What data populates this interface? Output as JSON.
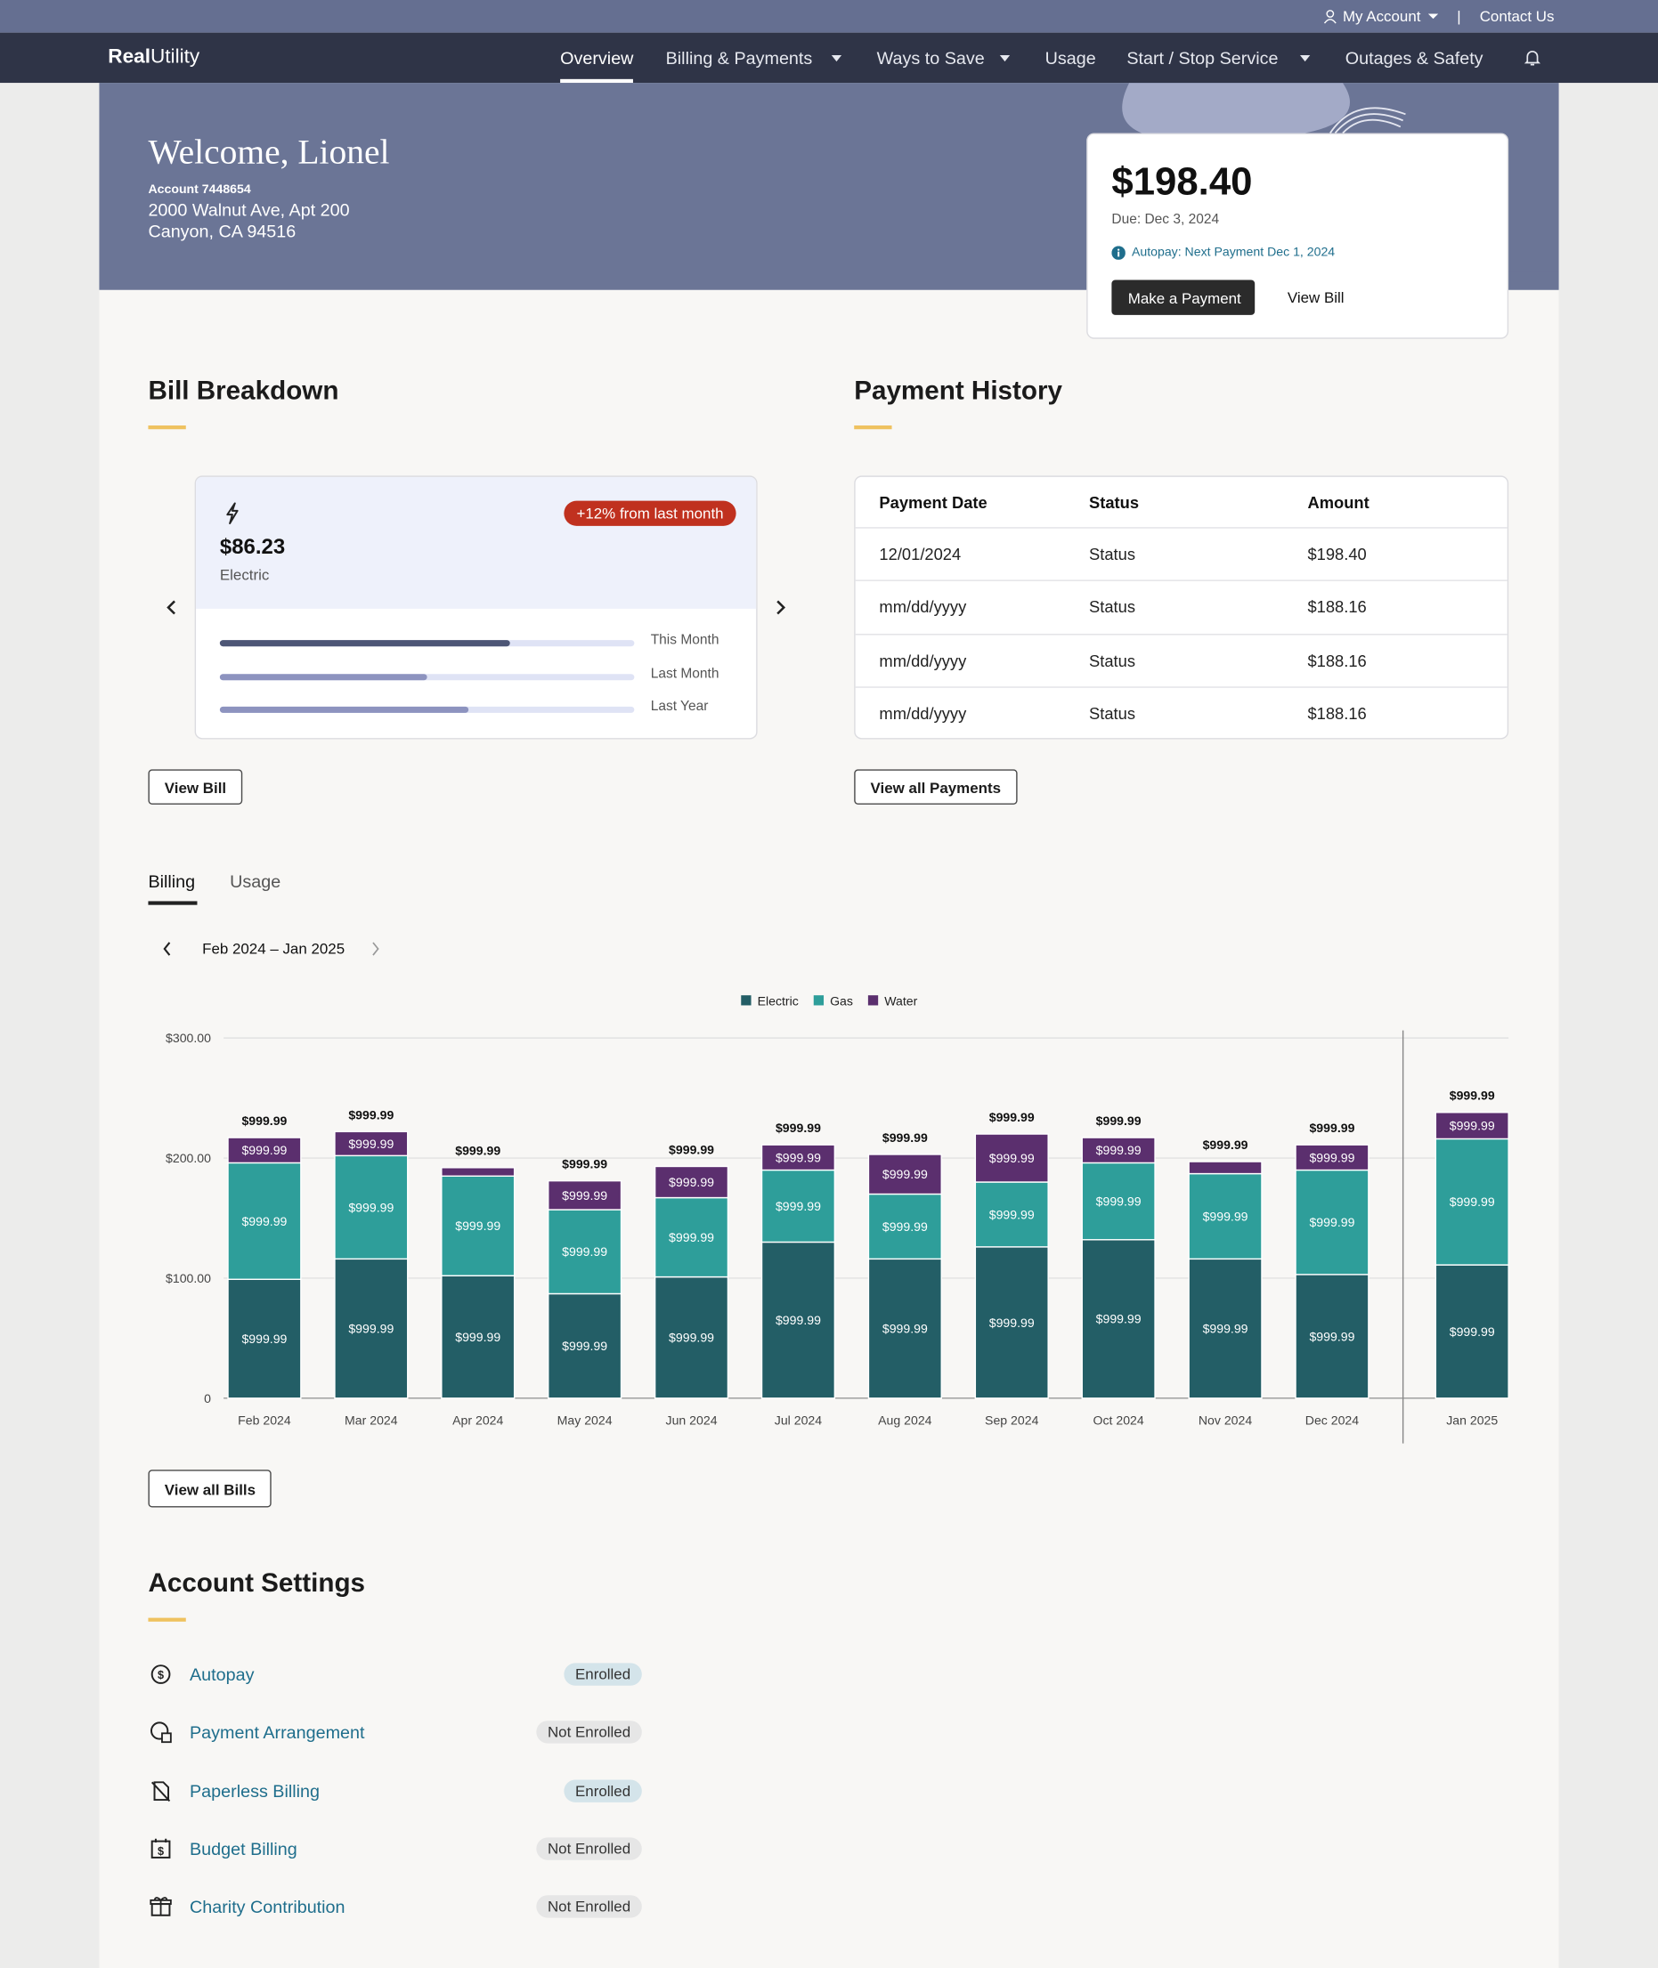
{
  "topbar": {
    "account": "My Account",
    "separator": "|",
    "contact": "Contact Us"
  },
  "nav": {
    "brand_bold": "Real",
    "brand_rest": "Utility",
    "items": [
      "Overview",
      "Billing & Payments",
      "Ways to Save",
      "Usage",
      "Start / Stop Service",
      "Outages & Safety"
    ]
  },
  "hero": {
    "welcome": "Welcome, Lionel",
    "account": "Account 7448654",
    "address1": "2000 Walnut Ave, Apt 200",
    "address2": "Canyon, CA 94516"
  },
  "payment_card": {
    "amount": "$198.40",
    "due": "Due: Dec 3, 2024",
    "autopay": "Autopay: Next Payment Dec 1, 2024",
    "primary_button": "Make a Payment",
    "secondary_button": "View Bill"
  },
  "bill_breakdown": {
    "title": "Bill Breakdown",
    "badge": "+12% from last month",
    "amount": "$86.23",
    "type": "Electric",
    "comparison": [
      {
        "label": "This Month",
        "value": 70
      },
      {
        "label": "Last Month",
        "value": 50
      },
      {
        "label": "Last Year",
        "value": 60
      }
    ],
    "button": "View Bill"
  },
  "payment_history": {
    "title": "Payment History",
    "columns": [
      "Payment Date",
      "Status",
      "Amount"
    ],
    "rows": [
      [
        "12/01/2024",
        "Status",
        "$198.40"
      ],
      [
        "mm/dd/yyyy",
        "Status",
        "$188.16"
      ],
      [
        "mm/dd/yyyy",
        "Status",
        "$188.16"
      ],
      [
        "mm/dd/yyyy",
        "Status",
        "$188.16"
      ]
    ],
    "button": "View all Payments"
  },
  "tabs": [
    "Billing",
    "Usage"
  ],
  "date_range": "Feb 2024 – Jan 2025",
  "chart_data": {
    "type": "bar",
    "stacked": true,
    "grid": true,
    "legend": "top",
    "categories": [
      "Feb 2024",
      "Mar 2024",
      "Apr 2024",
      "May 2024",
      "Jun 2024",
      "Jul 2024",
      "Aug 2024",
      "Sep 2024",
      "Oct 2024",
      "Nov 2024",
      "Dec 2024",
      "Jan 2025"
    ],
    "series": [
      {
        "name": "Electric",
        "color": "#235e66",
        "values": [
          99,
          116,
          102,
          87,
          101,
          130,
          116,
          126,
          132,
          116,
          103,
          111
        ],
        "segment_texts": [
          "$999.99",
          "$999.99",
          "$999.99",
          "$999.99",
          "$999.99",
          "$999.99",
          "$999.99",
          "$999.99",
          "$999.99",
          "$999.99",
          "$999.99",
          "$999.99"
        ]
      },
      {
        "name": "Gas",
        "color": "#2e9e9a",
        "values": [
          97,
          86,
          83,
          70,
          66,
          60,
          54,
          54,
          64,
          71,
          87,
          105
        ],
        "segment_texts": [
          "$999.99",
          "$999.99",
          "$999.99",
          "$999.99",
          "$999.99",
          "$999.99",
          "$999.99",
          "$999.99",
          "$999.99",
          "$999.99",
          "$999.99",
          "$999.99"
        ]
      },
      {
        "name": "Water",
        "color": "#5b2f6e",
        "values": [
          21,
          20,
          7,
          24,
          26,
          21,
          33,
          40,
          21,
          10,
          21,
          22
        ],
        "segment_texts": [
          "$999.99",
          "$999.99",
          null,
          "$999.99",
          "$999.99",
          "$999.99",
          "$999.99",
          "$999.99",
          "$999.99",
          null,
          "$999.99",
          "$999.99"
        ]
      }
    ],
    "total_texts": [
      "$999.99",
      "$999.99",
      "$999.99",
      "$999.99",
      "$999.99",
      "$999.99",
      "$999.99",
      "$999.99",
      "$999.99",
      "$999.99",
      "$999.99",
      "$999.99"
    ],
    "ylim": [
      0,
      300
    ],
    "yticks": [
      0,
      {
        "value": 100,
        "label": "$100.00"
      },
      {
        "value": 200,
        "label": "$200.00"
      },
      {
        "value": 300,
        "label": "$300.00"
      }
    ]
  },
  "chart_button": "View all Bills",
  "account_settings": {
    "title": "Account Settings",
    "items": [
      {
        "label": "Autopay",
        "status": "Enrolled"
      },
      {
        "label": "Payment Arrangement",
        "status": "Not Enrolled"
      },
      {
        "label": "Paperless Billing",
        "status": "Enrolled"
      },
      {
        "label": "Budget Billing",
        "status": "Not Enrolled"
      },
      {
        "label": "Charity Contribution",
        "status": "Not Enrolled"
      }
    ]
  }
}
